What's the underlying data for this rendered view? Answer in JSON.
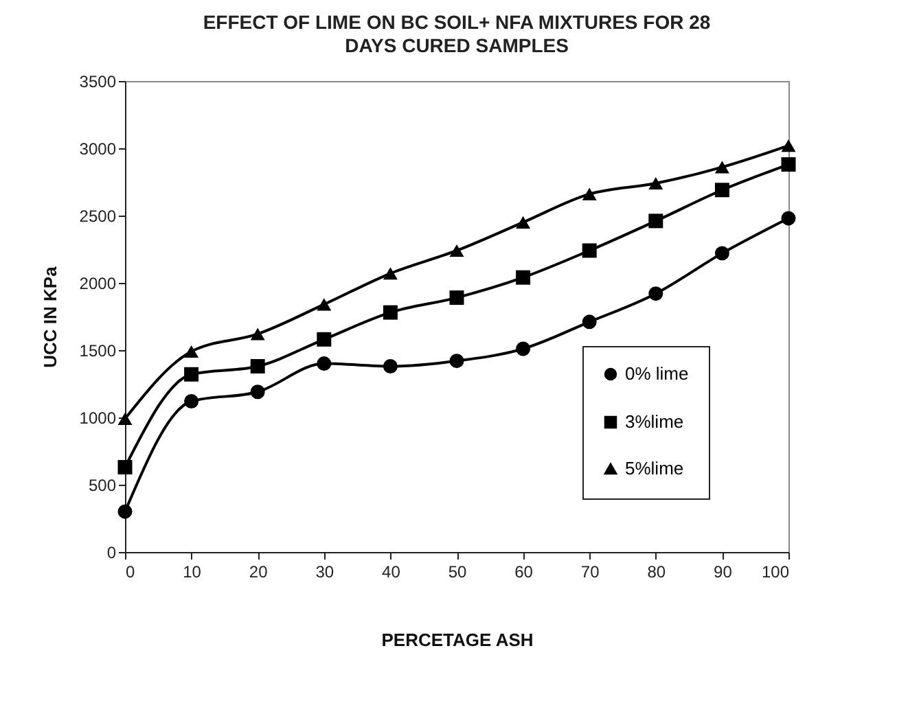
{
  "chart_data": {
    "type": "line",
    "title": "EFFECT OF LIME ON BC SOIL+ NFA MIXTURES  FOR 28 DAYS CURED SAMPLES",
    "xlabel": "PERCETAGE ASH",
    "ylabel": "UCC IN KPa",
    "x": [
      0,
      10,
      20,
      30,
      40,
      50,
      60,
      70,
      80,
      90,
      100
    ],
    "series": [
      {
        "name": "0% lime",
        "color": "#000000",
        "marker": "circle",
        "values": [
          300,
          1120,
          1190,
          1400,
          1380,
          1420,
          1510,
          1710,
          1920,
          2220,
          2480
        ]
      },
      {
        "name": "3%lime",
        "color": "#000000",
        "marker": "square",
        "values": [
          630,
          1320,
          1380,
          1580,
          1780,
          1890,
          2040,
          2240,
          2460,
          2690,
          2880
        ]
      },
      {
        "name": "5%lime",
        "color": "#000000",
        "marker": "triangle",
        "values": [
          990,
          1490,
          1620,
          1840,
          2070,
          2240,
          2450,
          2660,
          2740,
          2860,
          3020
        ]
      }
    ],
    "xlim": [
      0,
      100
    ],
    "xticks": [
      0,
      10,
      20,
      30,
      40,
      50,
      60,
      70,
      80,
      90,
      100
    ],
    "ylim": [
      0,
      3500
    ],
    "yticks": [
      0,
      500,
      1000,
      1500,
      2000,
      2500,
      3000,
      3500
    ],
    "grid": false,
    "legend": "bottom right",
    "line_style": "solid"
  }
}
